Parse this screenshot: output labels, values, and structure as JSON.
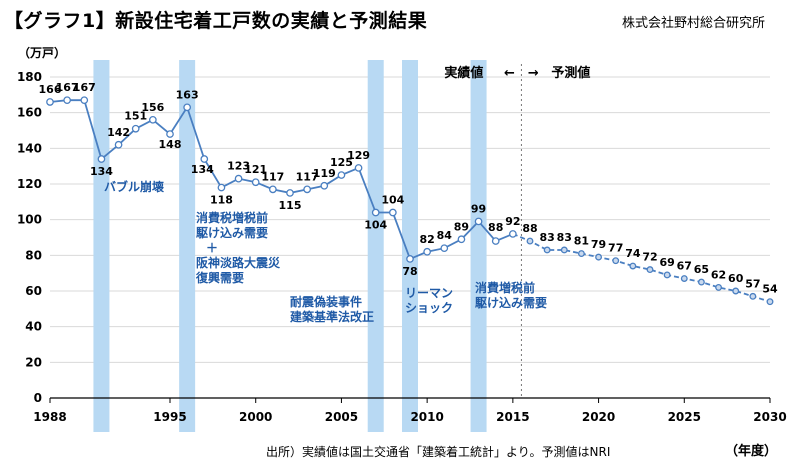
{
  "title": "【グラフ1】新設住宅着工戸数の実績と予測結果",
  "organization": "株式会社野村総合研究所",
  "source": "出所）実績値は国土交通省「建築着工統計」より。予測値はNRI",
  "chart_data": {
    "type": "line",
    "ylabel": "（万戸）",
    "xlabel": "（年度）",
    "ylim": [
      0,
      180
    ],
    "yticks": [
      0,
      20,
      40,
      60,
      80,
      100,
      120,
      140,
      160,
      180
    ],
    "xlim": [
      1988,
      2030
    ],
    "xticks": [
      1988,
      1995,
      2000,
      2005,
      2010,
      2015,
      2020,
      2025,
      2030
    ],
    "grid": "horizontal",
    "series": [
      {
        "name": "実績値",
        "style": "solid",
        "color": "#4a7fc1",
        "x": [
          1988,
          1989,
          1990,
          1991,
          1992,
          1993,
          1994,
          1995,
          1996,
          1997,
          1998,
          1999,
          2000,
          2001,
          2002,
          2003,
          2004,
          2005,
          2006,
          2007,
          2008,
          2009,
          2010,
          2011,
          2012,
          2013,
          2014,
          2015
        ],
        "values": [
          166,
          167,
          167,
          134,
          142,
          151,
          156,
          148,
          163,
          134,
          118,
          123,
          121,
          117,
          115,
          117,
          119,
          125,
          129,
          104,
          104,
          78,
          82,
          84,
          89,
          99,
          88,
          92
        ]
      },
      {
        "name": "予測値",
        "style": "dashed",
        "color": "#4a7fc1",
        "x": [
          2015,
          2016,
          2017,
          2018,
          2019,
          2020,
          2021,
          2022,
          2023,
          2024,
          2025,
          2026,
          2027,
          2028,
          2029,
          2030
        ],
        "values": [
          92,
          88,
          83,
          83,
          81,
          79,
          77,
          74,
          72,
          69,
          67,
          65,
          62,
          60,
          57,
          54
        ]
      }
    ],
    "legend": {
      "actual": "実績値",
      "arrows": "←　→",
      "forecast": "予測値",
      "divider_year": 2015.5
    },
    "highlight_bands": [
      {
        "x": 1991,
        "label": [
          "バブル崩壊"
        ]
      },
      {
        "x": 1996,
        "label": [
          "消費税増税前",
          "駆け込み需要",
          "＋",
          "阪神淡路大震災",
          "復興需要"
        ]
      },
      {
        "x": 2007,
        "label": [
          "耐震偽装事件",
          "建築基準法改正"
        ]
      },
      {
        "x": 2009,
        "label": [
          "リーマン",
          "ショック"
        ]
      },
      {
        "x": 2013,
        "label": [
          "消費増税前",
          "駆け込み需要"
        ]
      }
    ],
    "band_color": "#b8d9f3"
  }
}
